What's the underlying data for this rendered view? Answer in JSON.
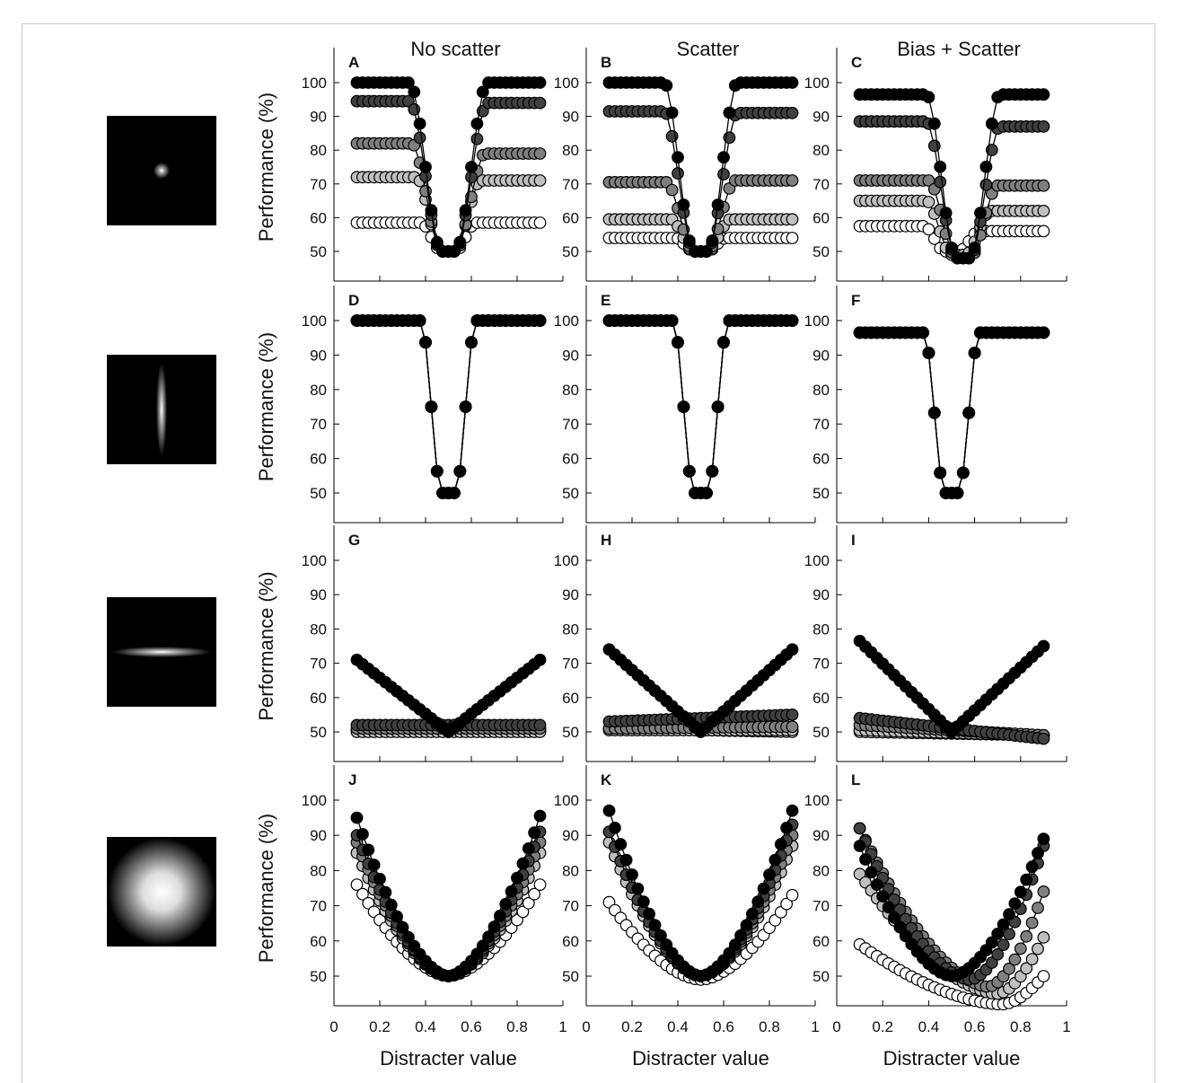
{
  "figure": {
    "column_titles": [
      "No scatter",
      "Scatter",
      "Bias + Scatter"
    ],
    "y_label": "Performance (%)",
    "x_label": "Distracter value",
    "x_ticks": [
      "0",
      "0.2",
      "0.4",
      "0.6",
      "0.8",
      "1"
    ],
    "y_ticks": [
      "50",
      "60",
      "70",
      "80",
      "90",
      "100"
    ],
    "series_fills": [
      "#000000",
      "#404040",
      "#7f7f7f",
      "#bfbfbf",
      "#ffffff"
    ],
    "row_icons": [
      "small-spot",
      "vertical-bar",
      "horizontal-bar",
      "large-blob"
    ]
  },
  "chart_data": [
    {
      "type": "scatter",
      "panel": "A",
      "title": "No scatter",
      "xlim": [
        0,
        1
      ],
      "ylim": [
        45,
        108
      ],
      "xlabel": "",
      "ylabel": "Performance (%)",
      "grid": false,
      "series": [
        {
          "dip": 50,
          "min": 50,
          "dip_center": 0.5,
          "half_width": 0.17,
          "left_level": 100,
          "right_level": 100
        },
        {
          "dip": 49,
          "min": 50,
          "dip_center": 0.5,
          "half_width": 0.17,
          "left_level": 94.5,
          "right_level": 94
        },
        {
          "dip": 52,
          "min": 50,
          "dip_center": 0.5,
          "half_width": 0.16,
          "left_level": 82,
          "right_level": 79
        },
        {
          "dip": 54,
          "min": 50,
          "dip_center": 0.5,
          "half_width": 0.14,
          "left_level": 72,
          "right_level": 71
        },
        {
          "dip": 56,
          "min": 50,
          "dip_center": 0.5,
          "half_width": 0.12,
          "left_level": 58.5,
          "right_level": 58.5
        }
      ]
    },
    {
      "type": "scatter",
      "panel": "B",
      "title": "Scatter",
      "xlim": [
        0,
        1
      ],
      "ylim": [
        45,
        108
      ],
      "xlabel": "",
      "ylabel": "",
      "grid": false,
      "series": [
        {
          "dip": 50,
          "min": 50,
          "dip_center": 0.5,
          "half_width": 0.16,
          "left_level": 100,
          "right_level": 100
        },
        {
          "dip": 50,
          "min": 50,
          "dip_center": 0.5,
          "half_width": 0.16,
          "left_level": 91.5,
          "right_level": 91
        },
        {
          "dip": 51,
          "min": 50,
          "dip_center": 0.5,
          "half_width": 0.15,
          "left_level": 70.5,
          "right_level": 71
        },
        {
          "dip": 52,
          "min": 50,
          "dip_center": 0.5,
          "half_width": 0.13,
          "left_level": 59.5,
          "right_level": 59.5
        },
        {
          "dip": 52,
          "min": 50,
          "dip_center": 0.5,
          "half_width": 0.11,
          "left_level": 54,
          "right_level": 54
        }
      ]
    },
    {
      "type": "scatter",
      "panel": "C",
      "title": "Bias + Scatter",
      "xlim": [
        0,
        1
      ],
      "ylim": [
        45,
        108
      ],
      "xlabel": "",
      "ylabel": "",
      "grid": false,
      "series": [
        {
          "dip": 52,
          "min": 48,
          "dip_center": 0.55,
          "half_width": 0.16,
          "left_level": 96.5,
          "right_level": 96.5
        },
        {
          "dip": 52,
          "min": 48,
          "dip_center": 0.55,
          "half_width": 0.16,
          "left_level": 88.5,
          "right_level": 87
        },
        {
          "dip": 54,
          "min": 48,
          "dip_center": 0.55,
          "half_width": 0.15,
          "left_level": 71,
          "right_level": 69.5
        },
        {
          "dip": 54,
          "min": 49,
          "dip_center": 0.53,
          "half_width": 0.14,
          "left_level": 65,
          "right_level": 62
        },
        {
          "dip": 54,
          "min": 50,
          "dip_center": 0.5,
          "half_width": 0.12,
          "left_level": 57.5,
          "right_level": 56
        }
      ]
    },
    {
      "type": "scatter",
      "panel": "D",
      "title": "",
      "xlim": [
        0,
        1
      ],
      "ylim": [
        45,
        108
      ],
      "xlabel": "",
      "ylabel": "Performance (%)",
      "grid": false,
      "series": [
        {
          "dip": 50,
          "min": 50,
          "dip_center": 0.5,
          "half_width": 0.12,
          "left_level": 100,
          "right_level": 100
        },
        {
          "dip": 50,
          "min": 50,
          "dip_center": 0.5,
          "half_width": 0.12,
          "left_level": 100,
          "right_level": 100
        },
        {
          "dip": 50,
          "min": 50,
          "dip_center": 0.5,
          "half_width": 0.12,
          "left_level": 100,
          "right_level": 100
        },
        {
          "dip": 50,
          "min": 50,
          "dip_center": 0.5,
          "half_width": 0.12,
          "left_level": 100,
          "right_level": 100
        },
        {
          "dip": 50,
          "min": 50,
          "dip_center": 0.5,
          "half_width": 0.12,
          "left_level": 100,
          "right_level": 100
        }
      ]
    },
    {
      "type": "scatter",
      "panel": "E",
      "title": "",
      "xlim": [
        0,
        1
      ],
      "ylim": [
        45,
        108
      ],
      "xlabel": "",
      "ylabel": "",
      "grid": false,
      "series": [
        {
          "dip": 50,
          "min": 50,
          "dip_center": 0.5,
          "half_width": 0.12,
          "left_level": 100,
          "right_level": 100
        },
        {
          "dip": 50,
          "min": 50,
          "dip_center": 0.5,
          "half_width": 0.12,
          "left_level": 100,
          "right_level": 100
        },
        {
          "dip": 50,
          "min": 50,
          "dip_center": 0.5,
          "half_width": 0.12,
          "left_level": 100,
          "right_level": 100
        },
        {
          "dip": 50,
          "min": 50,
          "dip_center": 0.5,
          "half_width": 0.12,
          "left_level": 100,
          "right_level": 100
        },
        {
          "dip": 50,
          "min": 50,
          "dip_center": 0.5,
          "half_width": 0.12,
          "left_level": 100,
          "right_level": 100
        }
      ]
    },
    {
      "type": "scatter",
      "panel": "F",
      "title": "",
      "xlim": [
        0,
        1
      ],
      "ylim": [
        45,
        108
      ],
      "xlabel": "",
      "ylabel": "",
      "grid": false,
      "series": [
        {
          "dip": 50,
          "min": 50,
          "dip_center": 0.5,
          "half_width": 0.12,
          "left_level": 96.5,
          "right_level": 96.5
        },
        {
          "dip": 50,
          "min": 50,
          "dip_center": 0.5,
          "half_width": 0.12,
          "left_level": 96.5,
          "right_level": 96.5
        },
        {
          "dip": 50,
          "min": 50,
          "dip_center": 0.5,
          "half_width": 0.12,
          "left_level": 96.5,
          "right_level": 96.5
        },
        {
          "dip": 50,
          "min": 50,
          "dip_center": 0.5,
          "half_width": 0.12,
          "left_level": 96.5,
          "right_level": 96.5
        },
        {
          "dip": 50,
          "min": 50,
          "dip_center": 0.5,
          "half_width": 0.12,
          "left_level": 96.5,
          "right_level": 96.5
        }
      ]
    },
    {
      "type": "scatter",
      "panel": "G",
      "title": "",
      "xlim": [
        0,
        1
      ],
      "ylim": [
        45,
        108
      ],
      "xlabel": "",
      "ylabel": "Performance (%)",
      "grid": false,
      "series": [
        {
          "shape": "v",
          "min": 50,
          "center": 0.5,
          "left_level": 71,
          "right_level": 71
        },
        {
          "shape": "flat",
          "left_level": 52,
          "right_level": 52
        },
        {
          "shape": "flat",
          "left_level": 51,
          "right_level": 51
        },
        {
          "shape": "flat",
          "left_level": 50,
          "right_level": 50
        },
        {
          "shape": "flat",
          "left_level": 50.5,
          "right_level": 50.5
        }
      ]
    },
    {
      "type": "scatter",
      "panel": "H",
      "title": "",
      "xlim": [
        0,
        1
      ],
      "ylim": [
        45,
        108
      ],
      "xlabel": "",
      "ylabel": "",
      "grid": false,
      "series": [
        {
          "shape": "v",
          "min": 50,
          "center": 0.5,
          "left_level": 74,
          "right_level": 74
        },
        {
          "shape": "flat",
          "left_level": 53,
          "right_level": 55
        },
        {
          "shape": "flat",
          "left_level": 51,
          "right_level": 51.5
        },
        {
          "shape": "flat",
          "left_level": 50.5,
          "right_level": 50.5
        },
        {
          "shape": "flat",
          "left_level": 51,
          "right_level": 50
        }
      ]
    },
    {
      "type": "scatter",
      "panel": "I",
      "title": "",
      "xlim": [
        0,
        1
      ],
      "ylim": [
        45,
        108
      ],
      "xlabel": "",
      "ylabel": "",
      "grid": false,
      "series": [
        {
          "shape": "v",
          "min": 50,
          "center": 0.5,
          "left_level": 76.5,
          "right_level": 75
        },
        {
          "shape": "flat",
          "left_level": 54,
          "right_level": 48
        },
        {
          "shape": "flat",
          "left_level": 52,
          "right_level": 49
        },
        {
          "shape": "flat",
          "left_level": 50.5,
          "right_level": 49
        },
        {
          "shape": "flat",
          "left_level": 50,
          "right_level": 49
        }
      ]
    },
    {
      "type": "scatter",
      "panel": "J",
      "title": "",
      "xlim": [
        0,
        1
      ],
      "ylim": [
        45,
        108
      ],
      "xlabel": "",
      "ylabel": "Performance (%)",
      "grid": false,
      "series": [
        {
          "shape": "u",
          "min": 50,
          "center": 0.5,
          "left_level": 95,
          "right_level": 95.5,
          "width": 0.2
        },
        {
          "shape": "u",
          "min": 50,
          "center": 0.5,
          "left_level": 90,
          "right_level": 91,
          "width": 0.3
        },
        {
          "shape": "u",
          "min": 50,
          "center": 0.5,
          "left_level": 88,
          "right_level": 88,
          "width": 0.32
        },
        {
          "shape": "u",
          "min": 50,
          "center": 0.5,
          "left_level": 85,
          "right_level": 85,
          "width": 0.33
        },
        {
          "shape": "u",
          "min": 50,
          "center": 0.5,
          "left_level": 76,
          "right_level": 76,
          "width": 0.35
        }
      ]
    },
    {
      "type": "scatter",
      "panel": "K",
      "title": "",
      "xlim": [
        0,
        1
      ],
      "ylim": [
        45,
        108
      ],
      "xlabel": "",
      "ylabel": "",
      "grid": false,
      "series": [
        {
          "shape": "u",
          "min": 50,
          "center": 0.5,
          "left_level": 97,
          "right_level": 97,
          "width": 0.22
        },
        {
          "shape": "u",
          "min": 50,
          "center": 0.5,
          "left_level": 91,
          "right_level": 93,
          "width": 0.3
        },
        {
          "shape": "u",
          "min": 50,
          "center": 0.5,
          "left_level": 91,
          "right_level": 90,
          "width": 0.32
        },
        {
          "shape": "u",
          "min": 50,
          "center": 0.5,
          "left_level": 88,
          "right_level": 87,
          "width": 0.33
        },
        {
          "shape": "u",
          "min": 49,
          "center": 0.5,
          "left_level": 71,
          "right_level": 73,
          "width": 0.35
        }
      ]
    },
    {
      "type": "scatter",
      "panel": "L",
      "title": "",
      "xlim": [
        0,
        1
      ],
      "ylim": [
        45,
        108
      ],
      "xlabel": "",
      "ylabel": "",
      "grid": false,
      "series": [
        {
          "shape": "u",
          "min": 50,
          "center": 0.5,
          "left_level": 87,
          "right_level": 89,
          "width": 0.25
        },
        {
          "shape": "u",
          "min": 49,
          "center": 0.58,
          "left_level": 92,
          "right_level": 87,
          "width": 0.3
        },
        {
          "shape": "u",
          "min": 47,
          "center": 0.66,
          "left_level": 92,
          "right_level": 74,
          "width": 0.32
        },
        {
          "shape": "u",
          "min": 45,
          "center": 0.7,
          "left_level": 79,
          "right_level": 61,
          "width": 0.32
        },
        {
          "shape": "u",
          "min": 42,
          "center": 0.72,
          "left_level": 59,
          "right_level": 50,
          "width": 0.32
        }
      ]
    }
  ]
}
